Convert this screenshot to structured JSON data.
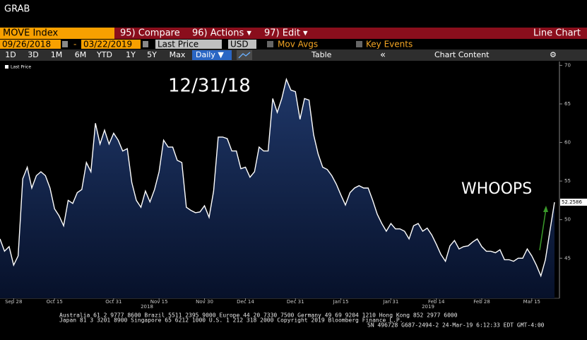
{
  "ui": {
    "window_title": "GRAB",
    "security": "MOVE Index",
    "menu": [
      "95) Compare",
      "96) Actions ▾",
      "97) Edit ▾"
    ],
    "view": "Line Chart",
    "start_date": "09/26/2018",
    "date_sep": "-",
    "end_date": "03/22/2019",
    "field": "Last Price",
    "currency": "USD",
    "mov_avgs": "Mov Avgs",
    "key_events": "Key Events",
    "ranges": [
      "1D",
      "3D",
      "1M",
      "6M",
      "YTD",
      "1Y",
      "5Y",
      "Max"
    ],
    "frequency": "Daily ▼",
    "table": "Table",
    "collapse": "«",
    "chart_content": "Chart Content",
    "footer": [
      "Australia 61 2 9777 8600 Brazil 5511 2395 9000 Europe 44 20 7330 7500 Germany 49 69 9204 1210 Hong Kong 852 2977 6000",
      "Japan 81 3 3201 8900         Singapore 65 6212 1000          U.S. 1 212 318 2000          Copyright 2019 Bloomberg Finance L.P.",
      "SN 496728 G687-2494-2 24-Mar-19  6:12:33 EDT  GMT-4:00"
    ]
  },
  "chart_data": {
    "type": "area",
    "series": [
      {
        "name": "Last Price",
        "color": "#ffffff",
        "values": [
          47.5,
          45.9,
          46.5,
          44.1,
          45.3,
          55.3,
          56.8,
          54.1,
          55.7,
          56.2,
          55.7,
          54.1,
          51.4,
          50.5,
          49.2,
          52.5,
          52.1,
          53.5,
          53.9,
          57.4,
          56.2,
          62.5,
          59.8,
          61.6,
          59.8,
          61.2,
          60.3,
          58.9,
          59.2,
          54.8,
          52.5,
          51.6,
          53.7,
          52.3,
          53.9,
          56.2,
          60.3,
          59.4,
          59.4,
          57.7,
          57.4,
          51.6,
          51.2,
          50.9,
          51.0,
          51.8,
          50.3,
          53.7,
          60.7,
          60.7,
          60.5,
          58.9,
          58.9,
          56.6,
          56.8,
          55.5,
          56.2,
          59.4,
          58.9,
          58.9,
          65.7,
          63.9,
          65.7,
          68.2,
          66.8,
          66.6,
          63.0,
          65.7,
          65.5,
          61.0,
          58.5,
          56.8,
          56.5,
          55.7,
          54.6,
          53.2,
          51.9,
          53.5,
          54.1,
          54.4,
          54.1,
          54.1,
          52.5,
          50.7,
          49.5,
          48.5,
          49.5,
          48.8,
          48.8,
          48.5,
          47.5,
          49.2,
          49.5,
          48.5,
          48.9,
          48.0,
          46.8,
          45.5,
          44.6,
          46.6,
          47.3,
          46.2,
          46.5,
          46.6,
          47.1,
          47.5,
          46.5,
          45.9,
          45.9,
          45.7,
          46.1,
          44.8,
          44.8,
          44.6,
          45.0,
          45.0,
          46.2,
          45.3,
          44.1,
          42.7,
          44.8,
          48.6,
          52.2586
        ]
      }
    ],
    "categories": [
      null,
      null,
      null,
      "Sep 28",
      null,
      null,
      null,
      null,
      null,
      null,
      null,
      null,
      "Oct 15",
      null,
      null,
      null,
      null,
      null,
      null,
      null,
      null,
      null,
      null,
      null,
      null,
      "Oct 31",
      null,
      null,
      null,
      null,
      null,
      null,
      null,
      null,
      null,
      "Nov 15",
      null,
      null,
      null,
      null,
      null,
      null,
      null,
      null,
      null,
      "Nov 30",
      null,
      null,
      null,
      null,
      null,
      null,
      null,
      null,
      "Dec 14",
      null,
      null,
      null,
      null,
      null,
      null,
      null,
      null,
      null,
      null,
      "Dec 31",
      null,
      null,
      null,
      null,
      null,
      null,
      null,
      null,
      null,
      "Jan 15",
      null,
      null,
      null,
      null,
      null,
      null,
      null,
      null,
      null,
      null,
      "Jan 31",
      null,
      null,
      null,
      null,
      null,
      null,
      null,
      null,
      null,
      "Feb 14",
      null,
      null,
      null,
      null,
      null,
      null,
      null,
      null,
      null,
      "Feb 28",
      null,
      null,
      null,
      null,
      null,
      null,
      null,
      null,
      null,
      null,
      "Mar 15",
      null,
      null,
      null,
      null,
      null
    ],
    "years": [
      "2018",
      "2019"
    ],
    "ylim": [
      39.8,
      70.5
    ],
    "yticks": [
      45,
      50,
      55,
      60,
      65,
      70
    ],
    "grid": false,
    "legend": "upper left",
    "annotations": [
      "12/31/18",
      "WHOOPS"
    ]
  }
}
